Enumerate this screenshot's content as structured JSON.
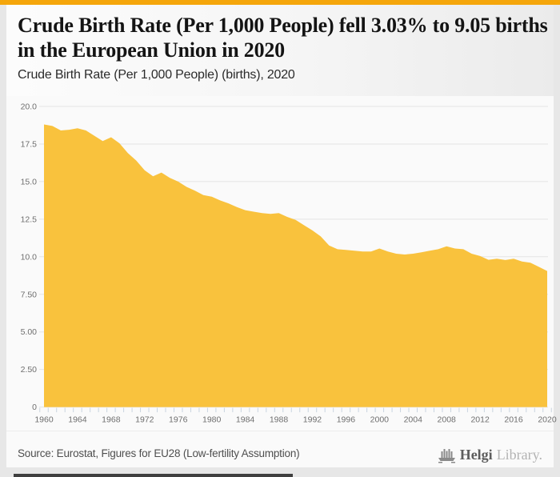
{
  "header": {
    "title": "Crude Birth Rate (Per 1,000 People) fell 3.03% to 9.05 births in the European Union in 2020",
    "subtitle": "Crude Birth Rate (Per 1,000 People) (births), 2020"
  },
  "footer": {
    "source": "Source: Eurostat, Figures for EU28 (Low-fertility Assumption)",
    "logo_bold": "Helgi",
    "logo_light": "Library."
  },
  "colors": {
    "accent_bar": "#f5a60b",
    "area_fill": "#f9c23d",
    "gridline": "#e4e4e4",
    "tick": "#c9d4df",
    "axis_label": "#6e6e6e",
    "plot_background": "#fafafa"
  },
  "chart_data": {
    "type": "area",
    "title": "Crude Birth Rate (Per 1,000 People) fell 3.03% to 9.05 births in the European Union in 2020",
    "subtitle": "Crude Birth Rate (Per 1,000 People) (births), 2020",
    "series_name": "Crude Birth Rate (Per 1,000 People)",
    "xlabel": "",
    "ylabel": "",
    "grid": true,
    "legend": false,
    "x_range": [
      1960,
      2020
    ],
    "ylim": [
      0,
      20
    ],
    "y_tick_values": [
      20,
      17.5,
      15,
      12.5,
      10,
      7.5,
      5,
      2.5,
      0
    ],
    "y_tick_labels": [
      "20.0",
      "17.5",
      "15.0",
      "12.5",
      "10.0",
      "7.50",
      "5.00",
      "2.50",
      "0"
    ],
    "x_tick_years": [
      1960,
      1964,
      1968,
      1972,
      1976,
      1980,
      1984,
      1988,
      1992,
      1996,
      2000,
      2004,
      2008,
      2012,
      2016,
      2020
    ],
    "x": [
      1960,
      1961,
      1962,
      1963,
      1964,
      1965,
      1966,
      1967,
      1968,
      1969,
      1970,
      1971,
      1972,
      1973,
      1974,
      1975,
      1976,
      1977,
      1978,
      1979,
      1980,
      1981,
      1982,
      1983,
      1984,
      1985,
      1986,
      1987,
      1988,
      1989,
      1990,
      1991,
      1992,
      1993,
      1994,
      1995,
      1996,
      1997,
      1998,
      1999,
      2000,
      2001,
      2002,
      2003,
      2004,
      2005,
      2006,
      2007,
      2008,
      2009,
      2010,
      2011,
      2012,
      2013,
      2014,
      2015,
      2016,
      2017,
      2018,
      2019,
      2020
    ],
    "values": [
      18.8,
      18.7,
      18.4,
      18.45,
      18.55,
      18.4,
      18.05,
      17.7,
      17.95,
      17.55,
      16.9,
      16.4,
      15.75,
      15.35,
      15.6,
      15.25,
      15.0,
      14.65,
      14.4,
      14.1,
      14.0,
      13.75,
      13.55,
      13.3,
      13.1,
      13.0,
      12.9,
      12.85,
      12.9,
      12.65,
      12.45,
      12.1,
      11.75,
      11.35,
      10.75,
      10.5,
      10.45,
      10.4,
      10.35,
      10.35,
      10.55,
      10.35,
      10.2,
      10.15,
      10.2,
      10.3,
      10.4,
      10.5,
      10.7,
      10.55,
      10.5,
      10.2,
      10.05,
      9.8,
      9.87,
      9.78,
      9.87,
      9.68,
      9.6,
      9.33,
      9.05
    ]
  }
}
